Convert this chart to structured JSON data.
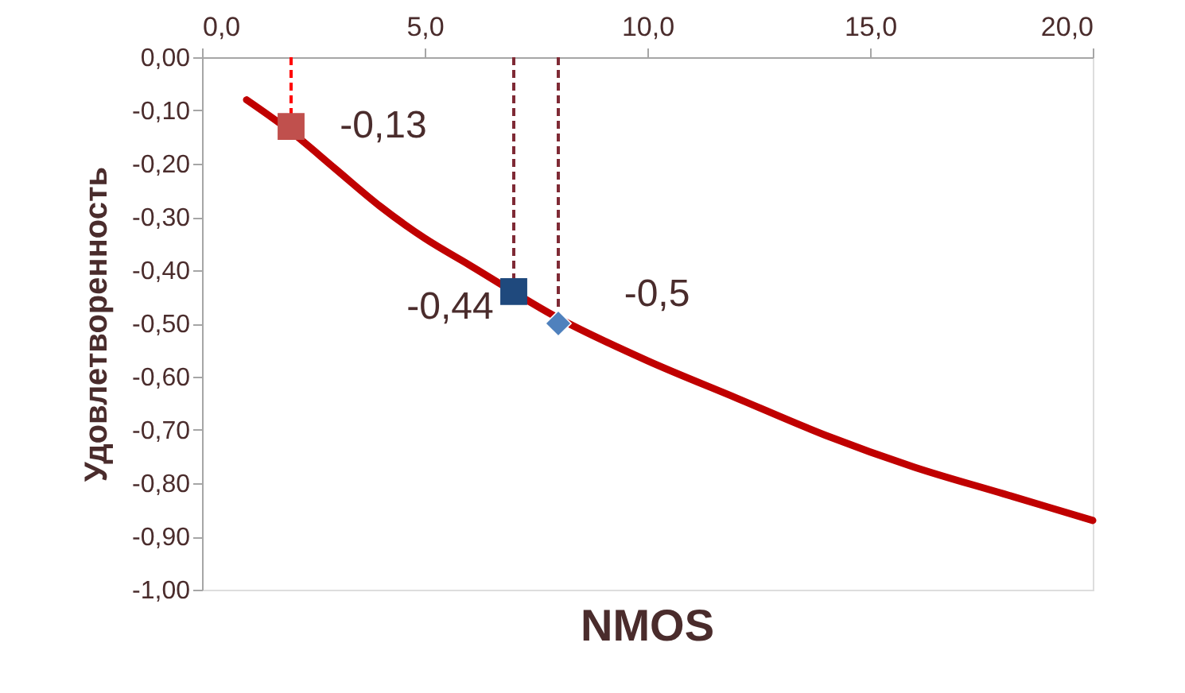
{
  "chart_data": {
    "type": "line",
    "xlabel": "NMOS",
    "ylabel": "Удовлетворенность",
    "xlim": [
      0,
      20
    ],
    "ylim": [
      -1,
      0
    ],
    "xticks": [
      {
        "value": 0,
        "label": "0,0"
      },
      {
        "value": 5,
        "label": "5,0"
      },
      {
        "value": 10,
        "label": "10,0"
      },
      {
        "value": 15,
        "label": "15,0"
      },
      {
        "value": 20,
        "label": "20,0"
      }
    ],
    "yticks": [
      {
        "value": 0,
        "label": "0,00"
      },
      {
        "value": -0.1,
        "label": "-0,10"
      },
      {
        "value": -0.2,
        "label": "-0,20"
      },
      {
        "value": -0.3,
        "label": "-0,30"
      },
      {
        "value": -0.4,
        "label": "-0,40"
      },
      {
        "value": -0.5,
        "label": "-0,50"
      },
      {
        "value": -0.6,
        "label": "-0,60"
      },
      {
        "value": -0.7,
        "label": "-0,70"
      },
      {
        "value": -0.8,
        "label": "-0,80"
      },
      {
        "value": -0.9,
        "label": "-0,90"
      },
      {
        "value": -1,
        "label": "-1,00"
      }
    ],
    "grid": false,
    "legend": false,
    "series": [
      {
        "color": "#c00000",
        "marker": "none",
        "line_style": "solid",
        "x": [
          1,
          2,
          3,
          4,
          5,
          6,
          8,
          10,
          12,
          14,
          16,
          18,
          20
        ],
        "values": [
          -0.08,
          -0.14,
          -0.21,
          -0.28,
          -0.34,
          -0.39,
          -0.49,
          -0.57,
          -0.64,
          -0.71,
          -0.77,
          -0.82,
          -0.87
        ]
      },
      {
        "type": "scatter",
        "color": "#c0504d",
        "marker": "square",
        "x": [
          2
        ],
        "values": [
          -0.13
        ],
        "value_labels": [
          "-0,13"
        ]
      },
      {
        "type": "scatter",
        "color": "#1f497d",
        "marker": "square",
        "x": [
          7
        ],
        "values": [
          -0.44
        ],
        "value_labels": [
          "-0,44"
        ]
      },
      {
        "type": "scatter",
        "color": "#4f81bd",
        "marker": "diamond",
        "x": [
          8
        ],
        "values": [
          -0.5
        ],
        "value_labels": [
          "-0,5"
        ]
      }
    ],
    "ref_lines": [
      {
        "axis": "x",
        "value": 2,
        "color": "#ff0000",
        "line_style": "dashed"
      },
      {
        "axis": "x",
        "value": 7,
        "color": "#7f2a35",
        "line_style": "dashed"
      },
      {
        "axis": "x",
        "value": 8,
        "color": "#7f2a35",
        "line_style": "dashed"
      }
    ]
  }
}
